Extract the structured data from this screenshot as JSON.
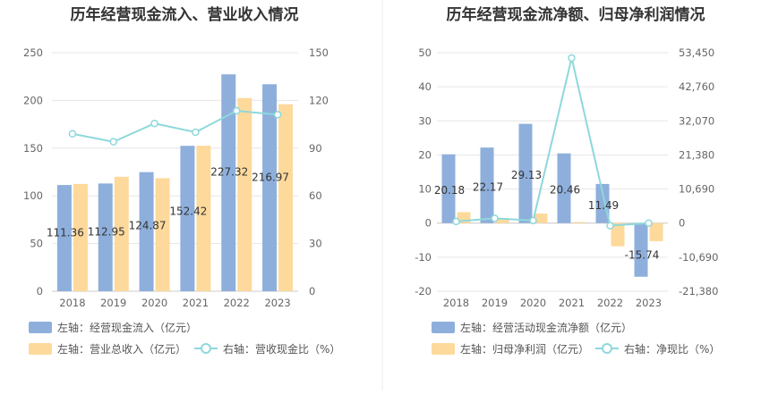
{
  "chart_data": [
    {
      "type": "bar+line",
      "title": "历年经营现金流入、营业收入情况",
      "categories": [
        "2018",
        "2019",
        "2020",
        "2021",
        "2022",
        "2023"
      ],
      "left_axis": {
        "ylim": [
          0,
          250
        ],
        "ticks": [
          "0",
          "50",
          "100",
          "150",
          "200",
          "250"
        ]
      },
      "right_axis": {
        "ylim": [
          0,
          150
        ],
        "ticks": [
          "0",
          "30",
          "60",
          "90",
          "120",
          "150"
        ]
      },
      "series": [
        {
          "name": "左轴：经营现金流入（亿元）",
          "kind": "bar",
          "axis": "left",
          "color": "#8eafdc",
          "values": [
            111.36,
            112.95,
            124.87,
            152.42,
            227.32,
            216.97
          ],
          "labels": [
            "111.36",
            "112.95",
            "124.87",
            "152.42",
            "227.32",
            "216.97"
          ]
        },
        {
          "name": "左轴：营业总收入（亿元）",
          "kind": "bar",
          "axis": "left",
          "color": "#fdd99b",
          "values": [
            112.5,
            120,
            118.5,
            152.5,
            202.5,
            196
          ]
        },
        {
          "name": "右轴：营收现金比（%）",
          "kind": "line",
          "axis": "right",
          "color": "#8ed8dc",
          "values": [
            99,
            94,
            105.5,
            100,
            113.5,
            111
          ]
        }
      ]
    },
    {
      "type": "bar+line",
      "title": "历年经营现金流净额、归母净利润情况",
      "categories": [
        "2018",
        "2019",
        "2020",
        "2021",
        "2022",
        "2023"
      ],
      "left_axis": {
        "ylim": [
          -20,
          50
        ],
        "ticks": [
          "-20",
          "-10",
          "0",
          "10",
          "20",
          "30",
          "40",
          "50"
        ]
      },
      "right_axis": {
        "ylim": [
          -21380,
          53450
        ],
        "ticks": [
          "-21,380",
          "-10,690",
          "0",
          "10,690",
          "21,380",
          "32,070",
          "42,760",
          "53,450"
        ]
      },
      "series": [
        {
          "name": "左轴：经营活动现金流净额（亿元）",
          "kind": "bar",
          "axis": "left",
          "color": "#8eafdc",
          "values": [
            20.18,
            22.17,
            29.13,
            20.46,
            11.49,
            -15.74
          ],
          "labels": [
            "20.18",
            "22.17",
            "29.13",
            "20.46",
            "11.49",
            "-15.74"
          ]
        },
        {
          "name": "左轴：归母净利润（亿元）",
          "kind": "bar",
          "axis": "left",
          "color": "#fdd99b",
          "values": [
            3.2,
            1.5,
            2.8,
            0.3,
            -6.8,
            -5.3
          ]
        },
        {
          "name": "右轴：净现比（%）",
          "kind": "line",
          "axis": "right",
          "color": "#8ed8dc",
          "values": [
            500,
            1500,
            800,
            51800,
            -800,
            0
          ]
        }
      ]
    }
  ]
}
